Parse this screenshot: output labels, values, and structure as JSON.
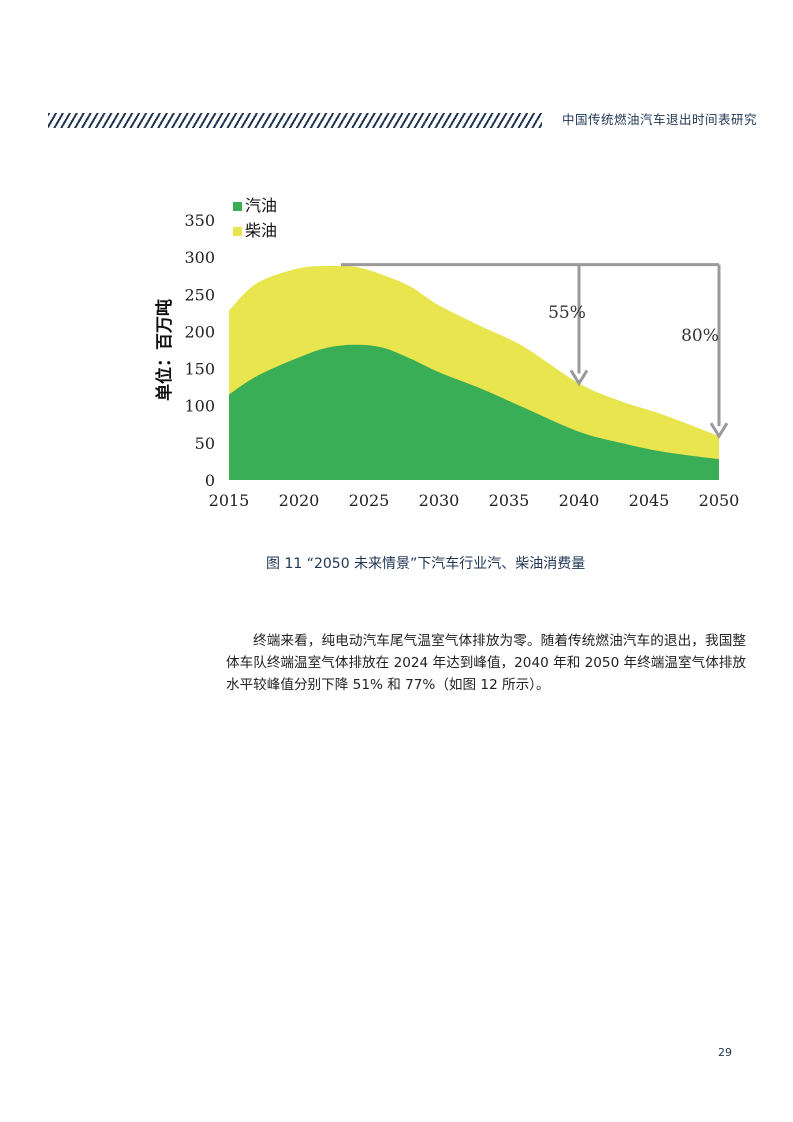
{
  "header": {
    "title": "中国传统燃油汽车退出时间表研究"
  },
  "chart_data": {
    "type": "area",
    "stacked": true,
    "x": [
      2015,
      2017,
      2020,
      2022,
      2024,
      2026,
      2028,
      2030,
      2033,
      2036,
      2040,
      2043,
      2046,
      2050
    ],
    "series": [
      {
        "name": "汽油",
        "color": "#3aad57",
        "values": [
          115,
          140,
          165,
          178,
          182,
          178,
          163,
          145,
          123,
          98,
          65,
          50,
          38,
          28
        ]
      },
      {
        "name": "柴油",
        "color": "#e8e54e",
        "values": [
          113,
          125,
          120,
          110,
          105,
          98,
          97,
          90,
          84,
          82,
          65,
          56,
          50,
          31
        ]
      }
    ],
    "xlabel": "",
    "ylabel": "单位：百万吨",
    "xticks": [
      "2015",
      "2020",
      "2025",
      "2030",
      "2035",
      "2040",
      "2045",
      "2050"
    ],
    "yticks": [
      "0",
      "50",
      "100",
      "150",
      "200",
      "250",
      "300",
      "350"
    ],
    "xlim": [
      2015,
      2050
    ],
    "ylim": [
      0,
      350
    ],
    "legend_position": "top-left",
    "grid": false,
    "annotations": [
      {
        "text": "55%",
        "x": 2040,
        "from": 290,
        "to": 130
      },
      {
        "text": "80%",
        "x": 2050,
        "from": 290,
        "to": 59
      }
    ]
  },
  "figure": {
    "caption": "图 11 “2050 未来情景”下汽车行业汽、柴油消费量"
  },
  "body": {
    "paragraph": "终端来看，纯电动汽车尾气温室气体排放为零。随着传统燃油汽车的退出，我国整体车队终端温室气体排放在 2024 年达到峰值，2040 年和 2050 年终端温室气体排放水平较峰值分别下降 51% 和 77%（如图 12 所示）。"
  },
  "page": {
    "number": "29"
  }
}
